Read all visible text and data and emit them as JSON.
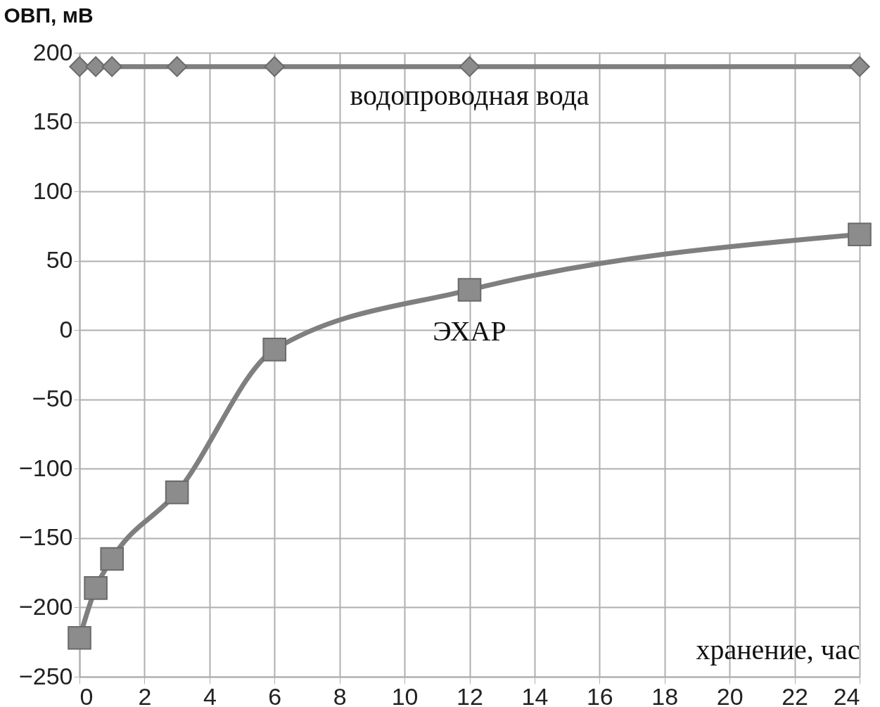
{
  "chart_data": {
    "type": "line",
    "xlabel": "хранение, час",
    "ylabel": "ОВП, мВ",
    "xlim": [
      0,
      24
    ],
    "xticks": [
      0,
      2,
      4,
      6,
      8,
      10,
      12,
      14,
      16,
      18,
      20,
      22,
      24
    ],
    "ylim": [
      -250,
      200
    ],
    "yticks": [
      -250,
      -200,
      -150,
      -100,
      -50,
      0,
      50,
      100,
      150,
      200
    ],
    "grid": true,
    "series": [
      {
        "name": "водопроводная вода",
        "color": "#7f7f7f",
        "marker": "diamond",
        "x": [
          0,
          0.5,
          1,
          3,
          6,
          12,
          24
        ],
        "values": [
          190,
          190,
          190,
          190,
          190,
          190,
          190
        ]
      },
      {
        "name": "ЭХАР",
        "color": "#7f7f7f",
        "marker": "square",
        "x": [
          0,
          0.5,
          1,
          3,
          6,
          12,
          24
        ],
        "values": [
          -222,
          -186,
          -165,
          -117,
          -14,
          29,
          69
        ]
      }
    ]
  }
}
